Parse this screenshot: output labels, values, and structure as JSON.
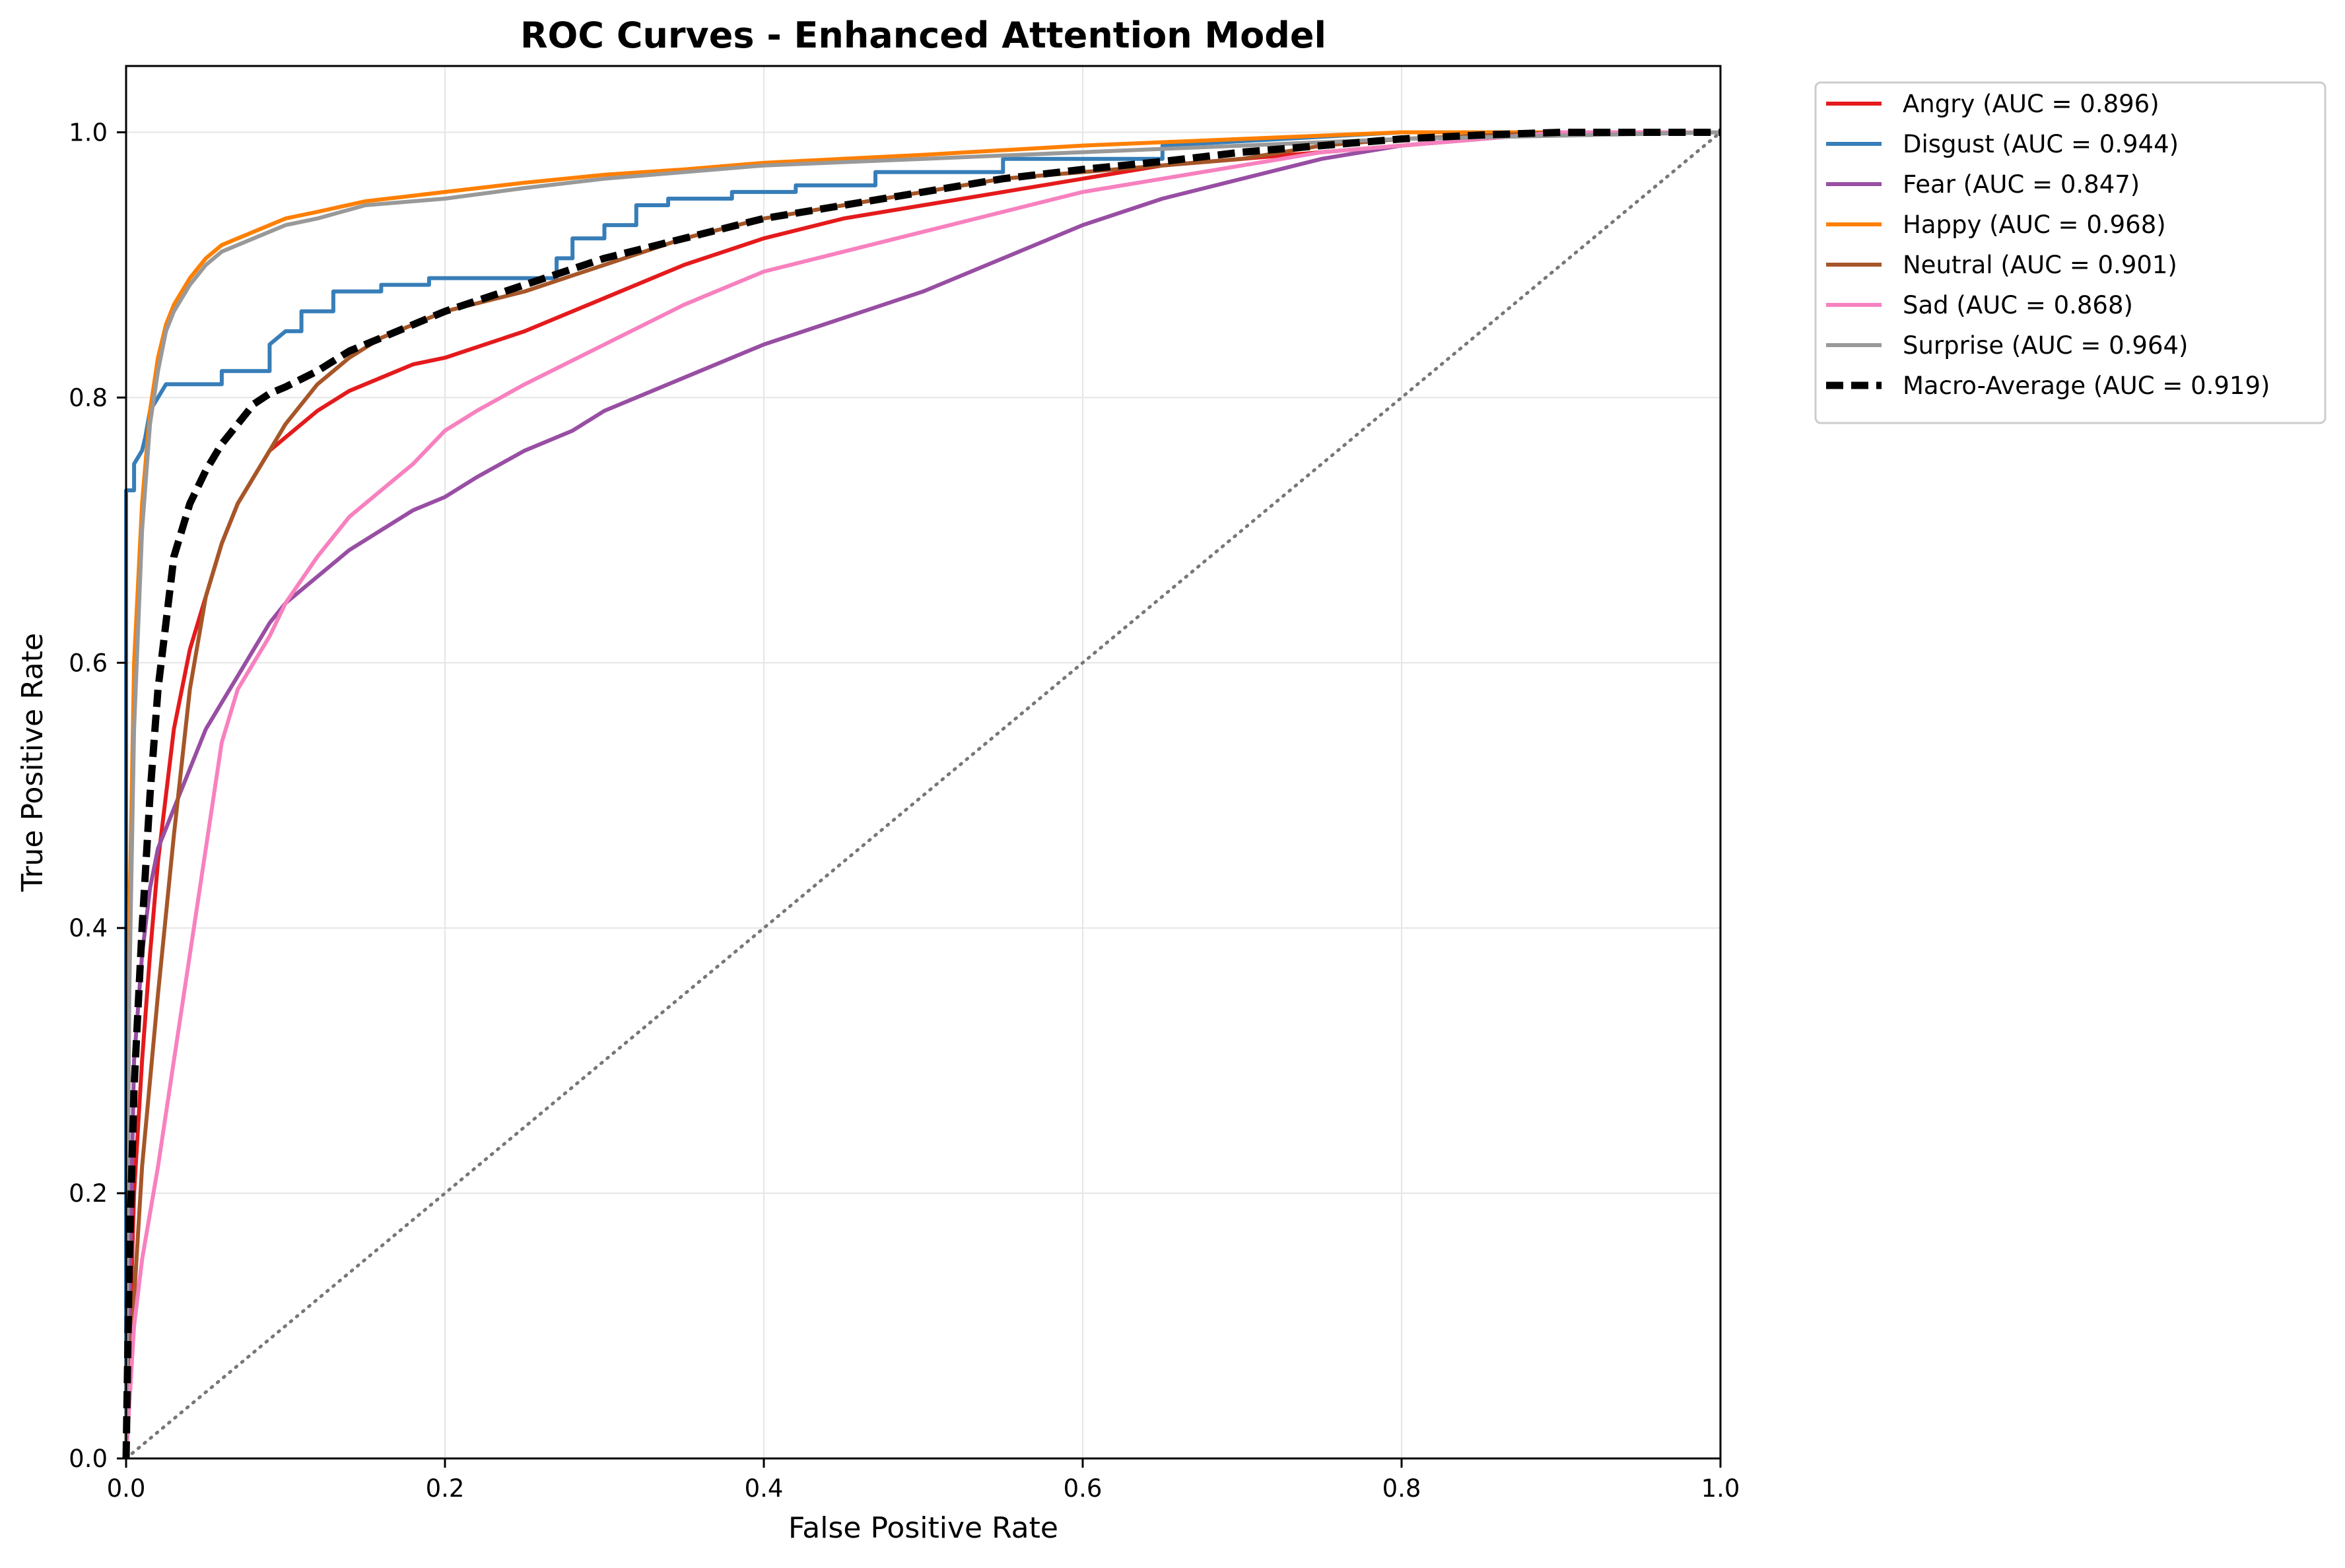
{
  "chart_data": {
    "type": "line",
    "title": "ROC Curves - Enhanced Attention Model",
    "xlabel": "False Positive Rate",
    "ylabel": "True Positive Rate",
    "xlim": [
      0,
      1
    ],
    "ylim": [
      0,
      1.05
    ],
    "xticks": [
      "0.0",
      "0.2",
      "0.4",
      "0.6",
      "0.8",
      "1.0"
    ],
    "yticks": [
      "0.0",
      "0.2",
      "0.4",
      "0.6",
      "0.8",
      "1.0"
    ],
    "grid": true,
    "legend_position": "outside upper right",
    "diagonal": {
      "x": [
        0,
        1
      ],
      "y": [
        0,
        1
      ],
      "color": "#777777",
      "style": "dotted"
    },
    "series": [
      {
        "name": "Angry (AUC = 0.896)",
        "color": "#e41a1c",
        "style": "solid",
        "x": [
          0,
          0.005,
          0.01,
          0.015,
          0.02,
          0.03,
          0.04,
          0.05,
          0.06,
          0.07,
          0.08,
          0.09,
          0.1,
          0.12,
          0.14,
          0.16,
          0.18,
          0.2,
          0.25,
          0.3,
          0.35,
          0.4,
          0.45,
          0.5,
          0.55,
          0.6,
          0.65,
          0.7,
          0.75,
          0.8,
          0.85,
          0.9,
          1
        ],
        "y": [
          0,
          0.2,
          0.3,
          0.38,
          0.45,
          0.55,
          0.61,
          0.65,
          0.69,
          0.72,
          0.74,
          0.76,
          0.77,
          0.79,
          0.805,
          0.815,
          0.825,
          0.83,
          0.85,
          0.875,
          0.9,
          0.92,
          0.935,
          0.945,
          0.955,
          0.965,
          0.975,
          0.98,
          0.985,
          0.99,
          0.995,
          1,
          1
        ]
      },
      {
        "name": "Disgust (AUC = 0.944)",
        "color": "#377eb8",
        "style": "solid",
        "x": [
          0,
          0,
          0.005,
          0.005,
          0.01,
          0.012,
          0.015,
          0.02,
          0.025,
          0.03,
          0.06,
          0.06,
          0.09,
          0.09,
          0.1,
          0.11,
          0.11,
          0.13,
          0.13,
          0.16,
          0.16,
          0.19,
          0.19,
          0.27,
          0.27,
          0.28,
          0.28,
          0.3,
          0.3,
          0.32,
          0.32,
          0.34,
          0.34,
          0.38,
          0.38,
          0.42,
          0.42,
          0.47,
          0.47,
          0.55,
          0.55,
          0.65,
          0.65,
          0.8,
          1
        ],
        "y": [
          0,
          0.73,
          0.73,
          0.75,
          0.76,
          0.77,
          0.79,
          0.8,
          0.81,
          0.81,
          0.81,
          0.82,
          0.82,
          0.84,
          0.85,
          0.85,
          0.865,
          0.865,
          0.88,
          0.88,
          0.885,
          0.885,
          0.89,
          0.89,
          0.905,
          0.905,
          0.92,
          0.92,
          0.93,
          0.93,
          0.945,
          0.945,
          0.95,
          0.95,
          0.955,
          0.955,
          0.96,
          0.96,
          0.97,
          0.97,
          0.98,
          0.98,
          0.99,
          1,
          1
        ]
      },
      {
        "name": "Fear (AUC = 0.847)",
        "color": "#984ea3",
        "style": "solid",
        "x": [
          0,
          0.005,
          0.01,
          0.015,
          0.02,
          0.03,
          0.04,
          0.05,
          0.06,
          0.07,
          0.08,
          0.09,
          0.1,
          0.12,
          0.14,
          0.16,
          0.18,
          0.2,
          0.22,
          0.25,
          0.28,
          0.3,
          0.33,
          0.36,
          0.4,
          0.45,
          0.5,
          0.55,
          0.6,
          0.65,
          0.7,
          0.75,
          0.8,
          0.85,
          0.9,
          1
        ],
        "y": [
          0,
          0.3,
          0.38,
          0.43,
          0.46,
          0.49,
          0.52,
          0.55,
          0.57,
          0.59,
          0.61,
          0.63,
          0.645,
          0.665,
          0.685,
          0.7,
          0.715,
          0.725,
          0.74,
          0.76,
          0.775,
          0.79,
          0.805,
          0.82,
          0.84,
          0.86,
          0.88,
          0.905,
          0.93,
          0.95,
          0.965,
          0.98,
          0.99,
          0.995,
          1,
          1
        ]
      },
      {
        "name": "Happy (AUC = 0.968)",
        "color": "#ff7f00",
        "style": "solid",
        "x": [
          0,
          0.002,
          0.005,
          0.01,
          0.015,
          0.02,
          0.025,
          0.03,
          0.04,
          0.05,
          0.06,
          0.07,
          0.08,
          0.1,
          0.12,
          0.15,
          0.2,
          0.25,
          0.3,
          0.35,
          0.4,
          0.5,
          0.6,
          0.7,
          0.8,
          1
        ],
        "y": [
          0,
          0.4,
          0.6,
          0.72,
          0.79,
          0.83,
          0.855,
          0.87,
          0.89,
          0.905,
          0.915,
          0.92,
          0.925,
          0.935,
          0.94,
          0.948,
          0.955,
          0.962,
          0.968,
          0.972,
          0.977,
          0.983,
          0.99,
          0.995,
          1,
          1
        ]
      },
      {
        "name": "Neutral (AUC = 0.901)",
        "color": "#a65628",
        "style": "solid",
        "x": [
          0,
          0.005,
          0.01,
          0.02,
          0.03,
          0.04,
          0.05,
          0.06,
          0.07,
          0.08,
          0.09,
          0.1,
          0.12,
          0.14,
          0.16,
          0.18,
          0.2,
          0.25,
          0.3,
          0.35,
          0.4,
          0.45,
          0.5,
          0.55,
          0.6,
          0.65,
          0.7,
          0.75,
          0.8,
          0.9,
          1
        ],
        "y": [
          0,
          0.12,
          0.22,
          0.35,
          0.47,
          0.58,
          0.65,
          0.69,
          0.72,
          0.74,
          0.76,
          0.78,
          0.81,
          0.83,
          0.845,
          0.855,
          0.865,
          0.88,
          0.9,
          0.92,
          0.935,
          0.945,
          0.955,
          0.965,
          0.97,
          0.975,
          0.98,
          0.99,
          0.995,
          1,
          1
        ]
      },
      {
        "name": "Sad (AUC = 0.868)",
        "color": "#f781bf",
        "style": "solid",
        "x": [
          0,
          0.005,
          0.01,
          0.02,
          0.03,
          0.04,
          0.05,
          0.06,
          0.07,
          0.08,
          0.09,
          0.1,
          0.12,
          0.14,
          0.16,
          0.18,
          0.2,
          0.22,
          0.25,
          0.3,
          0.35,
          0.4,
          0.45,
          0.5,
          0.55,
          0.6,
          0.65,
          0.7,
          0.75,
          0.8,
          0.85,
          0.9,
          1
        ],
        "y": [
          0,
          0.1,
          0.15,
          0.22,
          0.3,
          0.38,
          0.46,
          0.54,
          0.58,
          0.6,
          0.62,
          0.645,
          0.68,
          0.71,
          0.73,
          0.75,
          0.775,
          0.79,
          0.81,
          0.84,
          0.87,
          0.895,
          0.91,
          0.925,
          0.94,
          0.955,
          0.965,
          0.975,
          0.985,
          0.99,
          0.995,
          1,
          1
        ]
      },
      {
        "name": "Surprise (AUC = 0.964)",
        "color": "#999999",
        "style": "solid",
        "x": [
          0,
          0.002,
          0.005,
          0.01,
          0.015,
          0.02,
          0.025,
          0.03,
          0.04,
          0.05,
          0.06,
          0.08,
          0.1,
          0.12,
          0.15,
          0.2,
          0.25,
          0.3,
          0.35,
          0.4,
          0.5,
          0.6,
          0.7,
          0.8,
          1
        ],
        "y": [
          0,
          0.35,
          0.55,
          0.7,
          0.78,
          0.82,
          0.85,
          0.865,
          0.885,
          0.9,
          0.91,
          0.92,
          0.93,
          0.935,
          0.945,
          0.95,
          0.958,
          0.965,
          0.97,
          0.975,
          0.98,
          0.985,
          0.99,
          0.995,
          1
        ]
      },
      {
        "name": "Macro-Average (AUC = 0.919)",
        "color": "#000000",
        "style": "dashed",
        "x": [
          0,
          0.002,
          0.005,
          0.01,
          0.015,
          0.02,
          0.03,
          0.04,
          0.05,
          0.06,
          0.07,
          0.08,
          0.09,
          0.1,
          0.12,
          0.14,
          0.16,
          0.18,
          0.2,
          0.25,
          0.3,
          0.35,
          0.4,
          0.45,
          0.5,
          0.55,
          0.6,
          0.65,
          0.7,
          0.75,
          0.8,
          0.85,
          0.9,
          1
        ],
        "y": [
          0,
          0.15,
          0.28,
          0.4,
          0.5,
          0.58,
          0.68,
          0.72,
          0.745,
          0.765,
          0.78,
          0.795,
          0.803,
          0.808,
          0.82,
          0.835,
          0.845,
          0.855,
          0.865,
          0.885,
          0.905,
          0.92,
          0.935,
          0.945,
          0.955,
          0.965,
          0.972,
          0.978,
          0.985,
          0.99,
          0.995,
          0.998,
          1,
          1
        ]
      }
    ]
  }
}
